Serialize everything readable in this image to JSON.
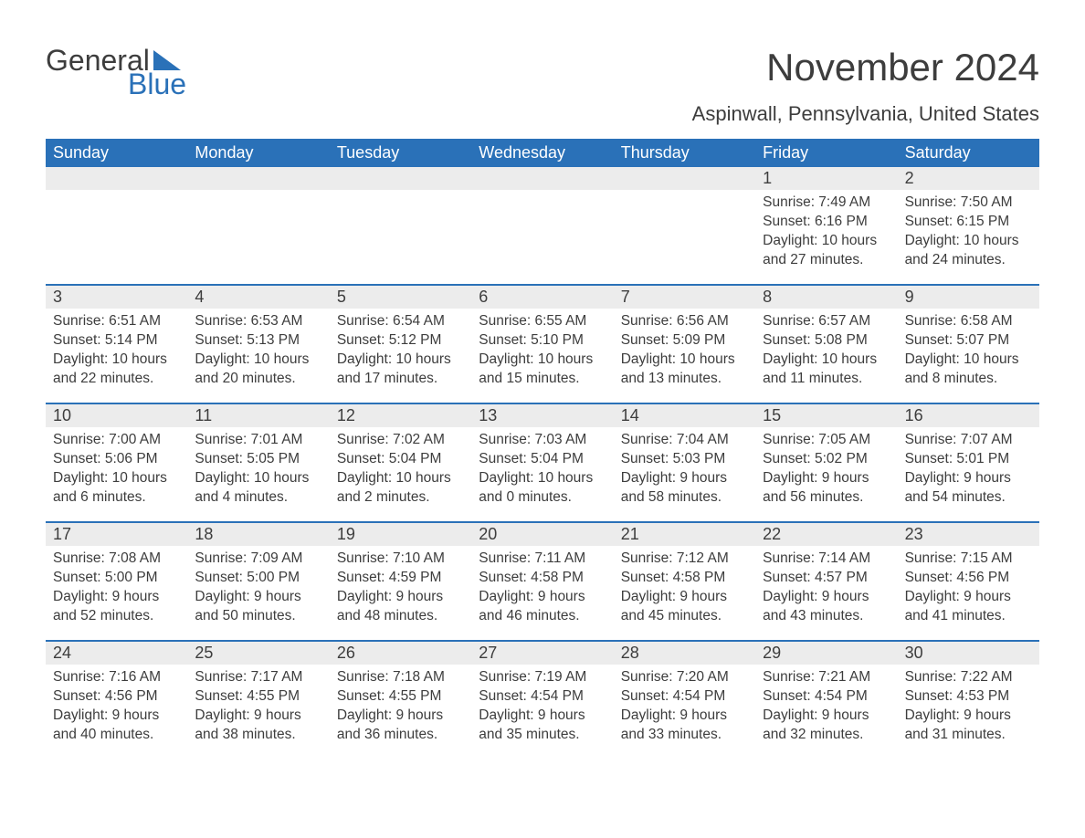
{
  "colors": {
    "brand_blue": "#2a71b8",
    "text": "#3d3d3d",
    "daynum_bg": "#ececec",
    "page_bg": "#ffffff",
    "header_text": "#ffffff"
  },
  "logo": {
    "word1": "General",
    "word2": "Blue"
  },
  "header": {
    "month_title": "November 2024",
    "location": "Aspinwall, Pennsylvania, United States"
  },
  "weekdays": [
    "Sunday",
    "Monday",
    "Tuesday",
    "Wednesday",
    "Thursday",
    "Friday",
    "Saturday"
  ],
  "weeks": [
    [
      {
        "n": "",
        "sunrise": "",
        "sunset": "",
        "dl1": "",
        "dl2": ""
      },
      {
        "n": "",
        "sunrise": "",
        "sunset": "",
        "dl1": "",
        "dl2": ""
      },
      {
        "n": "",
        "sunrise": "",
        "sunset": "",
        "dl1": "",
        "dl2": ""
      },
      {
        "n": "",
        "sunrise": "",
        "sunset": "",
        "dl1": "",
        "dl2": ""
      },
      {
        "n": "",
        "sunrise": "",
        "sunset": "",
        "dl1": "",
        "dl2": ""
      },
      {
        "n": "1",
        "sunrise": "Sunrise: 7:49 AM",
        "sunset": "Sunset: 6:16 PM",
        "dl1": "Daylight: 10 hours",
        "dl2": "and 27 minutes."
      },
      {
        "n": "2",
        "sunrise": "Sunrise: 7:50 AM",
        "sunset": "Sunset: 6:15 PM",
        "dl1": "Daylight: 10 hours",
        "dl2": "and 24 minutes."
      }
    ],
    [
      {
        "n": "3",
        "sunrise": "Sunrise: 6:51 AM",
        "sunset": "Sunset: 5:14 PM",
        "dl1": "Daylight: 10 hours",
        "dl2": "and 22 minutes."
      },
      {
        "n": "4",
        "sunrise": "Sunrise: 6:53 AM",
        "sunset": "Sunset: 5:13 PM",
        "dl1": "Daylight: 10 hours",
        "dl2": "and 20 minutes."
      },
      {
        "n": "5",
        "sunrise": "Sunrise: 6:54 AM",
        "sunset": "Sunset: 5:12 PM",
        "dl1": "Daylight: 10 hours",
        "dl2": "and 17 minutes."
      },
      {
        "n": "6",
        "sunrise": "Sunrise: 6:55 AM",
        "sunset": "Sunset: 5:10 PM",
        "dl1": "Daylight: 10 hours",
        "dl2": "and 15 minutes."
      },
      {
        "n": "7",
        "sunrise": "Sunrise: 6:56 AM",
        "sunset": "Sunset: 5:09 PM",
        "dl1": "Daylight: 10 hours",
        "dl2": "and 13 minutes."
      },
      {
        "n": "8",
        "sunrise": "Sunrise: 6:57 AM",
        "sunset": "Sunset: 5:08 PM",
        "dl1": "Daylight: 10 hours",
        "dl2": "and 11 minutes."
      },
      {
        "n": "9",
        "sunrise": "Sunrise: 6:58 AM",
        "sunset": "Sunset: 5:07 PM",
        "dl1": "Daylight: 10 hours",
        "dl2": "and 8 minutes."
      }
    ],
    [
      {
        "n": "10",
        "sunrise": "Sunrise: 7:00 AM",
        "sunset": "Sunset: 5:06 PM",
        "dl1": "Daylight: 10 hours",
        "dl2": "and 6 minutes."
      },
      {
        "n": "11",
        "sunrise": "Sunrise: 7:01 AM",
        "sunset": "Sunset: 5:05 PM",
        "dl1": "Daylight: 10 hours",
        "dl2": "and 4 minutes."
      },
      {
        "n": "12",
        "sunrise": "Sunrise: 7:02 AM",
        "sunset": "Sunset: 5:04 PM",
        "dl1": "Daylight: 10 hours",
        "dl2": "and 2 minutes."
      },
      {
        "n": "13",
        "sunrise": "Sunrise: 7:03 AM",
        "sunset": "Sunset: 5:04 PM",
        "dl1": "Daylight: 10 hours",
        "dl2": "and 0 minutes."
      },
      {
        "n": "14",
        "sunrise": "Sunrise: 7:04 AM",
        "sunset": "Sunset: 5:03 PM",
        "dl1": "Daylight: 9 hours",
        "dl2": "and 58 minutes."
      },
      {
        "n": "15",
        "sunrise": "Sunrise: 7:05 AM",
        "sunset": "Sunset: 5:02 PM",
        "dl1": "Daylight: 9 hours",
        "dl2": "and 56 minutes."
      },
      {
        "n": "16",
        "sunrise": "Sunrise: 7:07 AM",
        "sunset": "Sunset: 5:01 PM",
        "dl1": "Daylight: 9 hours",
        "dl2": "and 54 minutes."
      }
    ],
    [
      {
        "n": "17",
        "sunrise": "Sunrise: 7:08 AM",
        "sunset": "Sunset: 5:00 PM",
        "dl1": "Daylight: 9 hours",
        "dl2": "and 52 minutes."
      },
      {
        "n": "18",
        "sunrise": "Sunrise: 7:09 AM",
        "sunset": "Sunset: 5:00 PM",
        "dl1": "Daylight: 9 hours",
        "dl2": "and 50 minutes."
      },
      {
        "n": "19",
        "sunrise": "Sunrise: 7:10 AM",
        "sunset": "Sunset: 4:59 PM",
        "dl1": "Daylight: 9 hours",
        "dl2": "and 48 minutes."
      },
      {
        "n": "20",
        "sunrise": "Sunrise: 7:11 AM",
        "sunset": "Sunset: 4:58 PM",
        "dl1": "Daylight: 9 hours",
        "dl2": "and 46 minutes."
      },
      {
        "n": "21",
        "sunrise": "Sunrise: 7:12 AM",
        "sunset": "Sunset: 4:58 PM",
        "dl1": "Daylight: 9 hours",
        "dl2": "and 45 minutes."
      },
      {
        "n": "22",
        "sunrise": "Sunrise: 7:14 AM",
        "sunset": "Sunset: 4:57 PM",
        "dl1": "Daylight: 9 hours",
        "dl2": "and 43 minutes."
      },
      {
        "n": "23",
        "sunrise": "Sunrise: 7:15 AM",
        "sunset": "Sunset: 4:56 PM",
        "dl1": "Daylight: 9 hours",
        "dl2": "and 41 minutes."
      }
    ],
    [
      {
        "n": "24",
        "sunrise": "Sunrise: 7:16 AM",
        "sunset": "Sunset: 4:56 PM",
        "dl1": "Daylight: 9 hours",
        "dl2": "and 40 minutes."
      },
      {
        "n": "25",
        "sunrise": "Sunrise: 7:17 AM",
        "sunset": "Sunset: 4:55 PM",
        "dl1": "Daylight: 9 hours",
        "dl2": "and 38 minutes."
      },
      {
        "n": "26",
        "sunrise": "Sunrise: 7:18 AM",
        "sunset": "Sunset: 4:55 PM",
        "dl1": "Daylight: 9 hours",
        "dl2": "and 36 minutes."
      },
      {
        "n": "27",
        "sunrise": "Sunrise: 7:19 AM",
        "sunset": "Sunset: 4:54 PM",
        "dl1": "Daylight: 9 hours",
        "dl2": "and 35 minutes."
      },
      {
        "n": "28",
        "sunrise": "Sunrise: 7:20 AM",
        "sunset": "Sunset: 4:54 PM",
        "dl1": "Daylight: 9 hours",
        "dl2": "and 33 minutes."
      },
      {
        "n": "29",
        "sunrise": "Sunrise: 7:21 AM",
        "sunset": "Sunset: 4:54 PM",
        "dl1": "Daylight: 9 hours",
        "dl2": "and 32 minutes."
      },
      {
        "n": "30",
        "sunrise": "Sunrise: 7:22 AM",
        "sunset": "Sunset: 4:53 PM",
        "dl1": "Daylight: 9 hours",
        "dl2": "and 31 minutes."
      }
    ]
  ]
}
